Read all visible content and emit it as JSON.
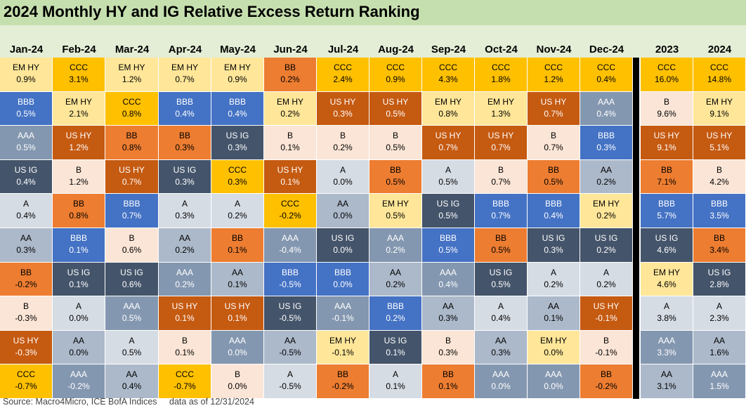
{
  "title": "2024 Monthly HY and IG Relative Excess Return Ranking",
  "footer": {
    "source": "Source: Macro4Micro, ICE BofA Indices",
    "asof": "data as of 12/31/2024"
  },
  "colors": {
    "CCC": "#ffc000",
    "EM HY": "#ffe699",
    "BB": "#ed7d31",
    "US HY": "#c55a11",
    "B": "#fbe5d6",
    "BBB": "#4472c4",
    "US IG": "#44546a",
    "AA": "#acb9ca",
    "A": "#d6dce4",
    "AAA": "#8497b0"
  },
  "chart_data": {
    "type": "table",
    "title": "2024 Monthly HY and IG Relative Excess Return Ranking",
    "columns": [
      "Jan-24",
      "Feb-24",
      "Mar-24",
      "Apr-24",
      "May-24",
      "Jun-24",
      "Jul-24",
      "Aug-24",
      "Sep-24",
      "Oct-24",
      "Nov-24",
      "Dec-24",
      "2023",
      "2024"
    ],
    "rows": [
      [
        [
          "EM HY",
          "0.9%"
        ],
        [
          "CCC",
          "3.1%"
        ],
        [
          "EM HY",
          "1.2%"
        ],
        [
          "EM HY",
          "0.7%"
        ],
        [
          "EM HY",
          "0.9%"
        ],
        [
          "BB",
          "0.2%"
        ],
        [
          "CCC",
          "2.4%"
        ],
        [
          "CCC",
          "0.9%"
        ],
        [
          "CCC",
          "4.3%"
        ],
        [
          "CCC",
          "1.8%"
        ],
        [
          "CCC",
          "1.2%"
        ],
        [
          "CCC",
          "0.4%"
        ],
        [
          "CCC",
          "16.0%"
        ],
        [
          "CCC",
          "14.8%"
        ]
      ],
      [
        [
          "BBB",
          "0.5%"
        ],
        [
          "EM HY",
          "2.1%"
        ],
        [
          "CCC",
          "0.8%"
        ],
        [
          "BBB",
          "0.4%"
        ],
        [
          "BBB",
          "0.4%"
        ],
        [
          "EM HY",
          "0.2%"
        ],
        [
          "US HY",
          "0.3%"
        ],
        [
          "US HY",
          "0.5%"
        ],
        [
          "EM HY",
          "0.8%"
        ],
        [
          "EM HY",
          "1.3%"
        ],
        [
          "US HY",
          "0.7%"
        ],
        [
          "AAA",
          "0.4%"
        ],
        [
          "B",
          "9.6%"
        ],
        [
          "EM HY",
          "9.1%"
        ]
      ],
      [
        [
          "AAA",
          "0.5%"
        ],
        [
          "US HY",
          "1.2%"
        ],
        [
          "BB",
          "0.8%"
        ],
        [
          "BB",
          "0.3%"
        ],
        [
          "US IG",
          "0.3%"
        ],
        [
          "B",
          "0.1%"
        ],
        [
          "B",
          "0.2%"
        ],
        [
          "B",
          "0.5%"
        ],
        [
          "US HY",
          "0.7%"
        ],
        [
          "US HY",
          "0.7%"
        ],
        [
          "B",
          "0.7%"
        ],
        [
          "BBB",
          "0.3%"
        ],
        [
          "US HY",
          "9.1%"
        ],
        [
          "US HY",
          "5.1%"
        ]
      ],
      [
        [
          "US IG",
          "0.4%"
        ],
        [
          "B",
          "1.2%"
        ],
        [
          "US HY",
          "0.7%"
        ],
        [
          "US IG",
          "0.3%"
        ],
        [
          "CCC",
          "0.3%"
        ],
        [
          "US HY",
          "0.1%"
        ],
        [
          "A",
          "0.0%"
        ],
        [
          "BB",
          "0.5%"
        ],
        [
          "A",
          "0.5%"
        ],
        [
          "B",
          "0.7%"
        ],
        [
          "BB",
          "0.5%"
        ],
        [
          "AA",
          "0.2%"
        ],
        [
          "BB",
          "7.1%"
        ],
        [
          "B",
          "4.2%"
        ]
      ],
      [
        [
          "A",
          "0.4%"
        ],
        [
          "BB",
          "0.8%"
        ],
        [
          "BBB",
          "0.7%"
        ],
        [
          "A",
          "0.3%"
        ],
        [
          "A",
          "0.2%"
        ],
        [
          "CCC",
          "-0.2%"
        ],
        [
          "AA",
          "0.0%"
        ],
        [
          "EM HY",
          "0.5%"
        ],
        [
          "US IG",
          "0.5%"
        ],
        [
          "BBB",
          "0.7%"
        ],
        [
          "BBB",
          "0.4%"
        ],
        [
          "EM HY",
          "0.2%"
        ],
        [
          "BBB",
          "5.7%"
        ],
        [
          "BBB",
          "3.5%"
        ]
      ],
      [
        [
          "AA",
          "0.3%"
        ],
        [
          "BBB",
          "0.1%"
        ],
        [
          "B",
          "0.6%"
        ],
        [
          "AA",
          "0.2%"
        ],
        [
          "BB",
          "0.1%"
        ],
        [
          "AAA",
          "-0.4%"
        ],
        [
          "US IG",
          "0.0%"
        ],
        [
          "AAA",
          "0.2%"
        ],
        [
          "BBB",
          "0.5%"
        ],
        [
          "BB",
          "0.5%"
        ],
        [
          "US IG",
          "0.3%"
        ],
        [
          "US IG",
          "0.2%"
        ],
        [
          "US IG",
          "4.6%"
        ],
        [
          "BB",
          "3.4%"
        ]
      ],
      [
        [
          "BB",
          "-0.2%"
        ],
        [
          "US IG",
          "0.1%"
        ],
        [
          "US IG",
          "0.6%"
        ],
        [
          "AAA",
          "0.2%"
        ],
        [
          "AA",
          "0.1%"
        ],
        [
          "BBB",
          "-0.5%"
        ],
        [
          "BBB",
          "0.0%"
        ],
        [
          "AA",
          "0.2%"
        ],
        [
          "AAA",
          "0.4%"
        ],
        [
          "US IG",
          "0.5%"
        ],
        [
          "A",
          "0.2%"
        ],
        [
          "A",
          "0.2%"
        ],
        [
          "EM HY",
          "4.6%"
        ],
        [
          "US IG",
          "2.8%"
        ]
      ],
      [
        [
          "B",
          "-0.3%"
        ],
        [
          "A",
          "0.0%"
        ],
        [
          "AAA",
          "0.5%"
        ],
        [
          "US HY",
          "0.1%"
        ],
        [
          "US HY",
          "0.1%"
        ],
        [
          "US IG",
          "-0.5%"
        ],
        [
          "AAA",
          "-0.1%"
        ],
        [
          "BBB",
          "0.2%"
        ],
        [
          "AA",
          "0.3%"
        ],
        [
          "A",
          "0.4%"
        ],
        [
          "AA",
          "0.1%"
        ],
        [
          "US HY",
          "-0.1%"
        ],
        [
          "A",
          "3.8%"
        ],
        [
          "A",
          "2.3%"
        ]
      ],
      [
        [
          "US HY",
          "-0.3%"
        ],
        [
          "AA",
          "0.0%"
        ],
        [
          "A",
          "0.5%"
        ],
        [
          "B",
          "0.1%"
        ],
        [
          "AAA",
          "0.0%"
        ],
        [
          "AA",
          "-0.5%"
        ],
        [
          "EM HY",
          "-0.1%"
        ],
        [
          "US IG",
          "0.1%"
        ],
        [
          "B",
          "0.3%"
        ],
        [
          "AA",
          "0.3%"
        ],
        [
          "EM HY",
          "0.0%"
        ],
        [
          "B",
          "-0.1%"
        ],
        [
          "AAA",
          "3.3%"
        ],
        [
          "AA",
          "1.6%"
        ]
      ],
      [
        [
          "CCC",
          "-0.7%"
        ],
        [
          "AAA",
          "-0.2%"
        ],
        [
          "AA",
          "0.4%"
        ],
        [
          "CCC",
          "-0.7%"
        ],
        [
          "B",
          "0.0%"
        ],
        [
          "A",
          "-0.5%"
        ],
        [
          "BB",
          "-0.2%"
        ],
        [
          "A",
          "0.1%"
        ],
        [
          "BB",
          "0.1%"
        ],
        [
          "AAA",
          "0.0%"
        ],
        [
          "AAA",
          "0.0%"
        ],
        [
          "BB",
          "-0.2%"
        ],
        [
          "AA",
          "3.1%"
        ],
        [
          "AAA",
          "1.5%"
        ]
      ]
    ]
  }
}
